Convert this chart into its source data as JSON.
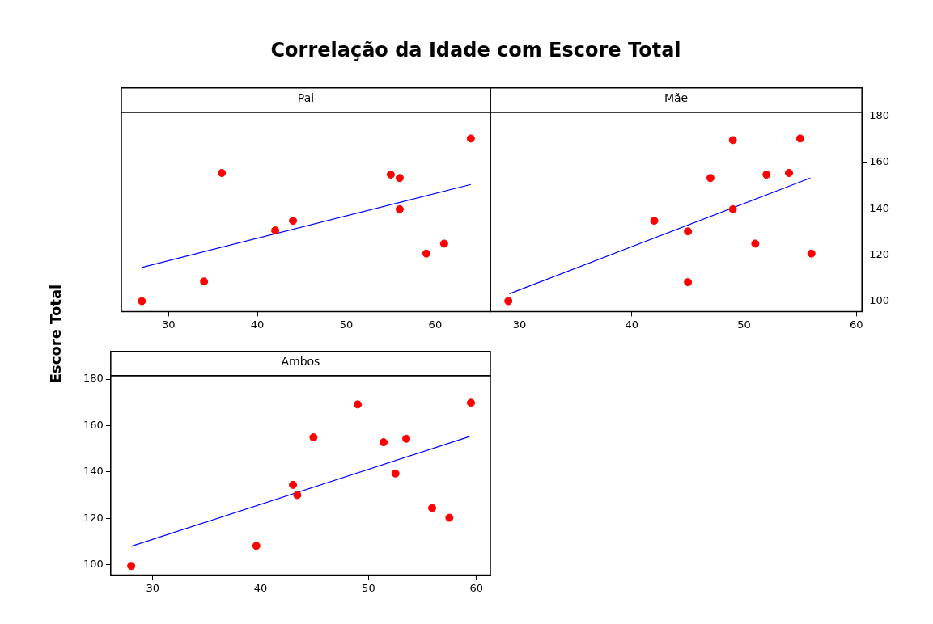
{
  "chart_data": [
    {
      "type": "scatter",
      "title": "Correlação da Idade com Escore Total",
      "subtitle": "Pai",
      "xlim": [
        24.7,
        66.2
      ],
      "xticks": [
        30,
        40,
        50,
        60
      ],
      "ylim": [
        95.5,
        181.8
      ],
      "yticks": [
        100,
        120,
        140,
        160,
        180
      ],
      "tick_labels": "x",
      "grid": false,
      "legend": false,
      "series": [
        {
          "marker": "circle",
          "color": "#ff0000",
          "x": [
            27,
            34,
            36,
            42,
            44,
            55,
            56,
            56,
            59,
            61,
            64
          ],
          "values": [
            100,
            108.5,
            155.5,
            130.6,
            134.8,
            154.8,
            153.3,
            139.8,
            120.6,
            124.9,
            170.4
          ]
        },
        {
          "type": "line",
          "marker": "none",
          "color": "#0000ff",
          "x": [
            27,
            64
          ],
          "values": [
            114.6,
            150.5
          ]
        }
      ]
    },
    {
      "type": "scatter",
      "subtitle": "Mãe",
      "xlim": [
        27.4,
        60.5
      ],
      "xticks": [
        30,
        40,
        50,
        60
      ],
      "y2lim": [
        95.5,
        181.8
      ],
      "y2ticks": [
        100,
        120,
        140,
        160,
        180
      ],
      "grid": false,
      "legend": false,
      "series": [
        {
          "marker": "circle",
          "color": "#ff0000",
          "axis": "y2",
          "x": [
            29,
            42,
            45,
            45,
            47,
            49,
            49,
            51,
            52,
            54,
            55,
            56
          ],
          "values": [
            100,
            134.8,
            130.2,
            108.2,
            153.3,
            169.7,
            139.8,
            124.9,
            154.8,
            155.5,
            170.4,
            120.6
          ]
        },
        {
          "type": "line",
          "marker": "none",
          "color": "#0000ff",
          "axis": "y2",
          "x": [
            29.1,
            55.9
          ],
          "values": [
            103.2,
            153.3
          ]
        }
      ]
    },
    {
      "type": "scatter",
      "subtitle": "Ambos",
      "ylabel": "Escore Total",
      "xlim": [
        26.1,
        61.3
      ],
      "xticks": [
        30,
        40,
        50,
        60
      ],
      "ylim": [
        95.5,
        181.5
      ],
      "yticks": [
        100,
        120,
        140,
        160,
        180
      ],
      "grid": false,
      "legend": false,
      "series": [
        {
          "marker": "circle",
          "color": "#ff0000",
          "x": [
            28,
            39.6,
            43,
            43.4,
            44.9,
            49,
            51.4,
            52.5,
            53.5,
            55.9,
            57.5,
            59.5
          ],
          "values": [
            99.4,
            108.1,
            134.4,
            130,
            154.9,
            169.1,
            152.8,
            139.3,
            154.3,
            124.4,
            120.2,
            169.8
          ]
        },
        {
          "type": "line",
          "marker": "none",
          "color": "#0000ff",
          "x": [
            28,
            59.4
          ],
          "values": [
            107.9,
            155.3
          ]
        }
      ]
    }
  ]
}
